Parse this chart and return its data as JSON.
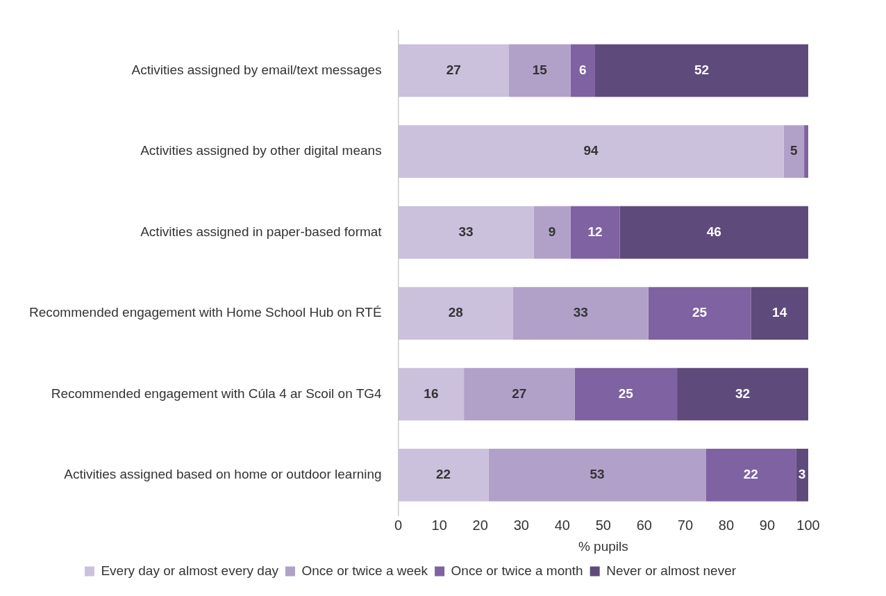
{
  "chart_data": {
    "type": "bar",
    "orientation": "horizontal",
    "stacked": true,
    "xlabel": "% pupils",
    "categories": [
      "Activities assigned by email/text messages",
      "Activities assigned by other digital means",
      "Activities assigned in paper-based format",
      "Recommended engagement with Home School Hub on RTÉ",
      "Recommended engagement with Cúla 4 ar Scoil on TG4",
      "Activities assigned based on home or outdoor learning"
    ],
    "series": [
      {
        "name": "Every day or almost every day",
        "color": "#cbc1dc",
        "values": [
          27,
          94,
          33,
          28,
          16,
          22
        ],
        "value_labels": [
          "27",
          "94",
          "33",
          "28",
          "16",
          "22"
        ]
      },
      {
        "name": "Once or twice a week",
        "color": "#b1a1c9",
        "values": [
          15,
          5,
          9,
          33,
          27,
          53
        ],
        "value_labels": [
          "15",
          "5",
          "9",
          "33",
          "27",
          "53"
        ]
      },
      {
        "name": "Once or twice a month",
        "color": "#7f62a1",
        "values": [
          6,
          1,
          12,
          25,
          25,
          22
        ],
        "value_labels": [
          "6",
          null,
          "12",
          "25",
          "25",
          "22"
        ]
      },
      {
        "name": "Never or almost never",
        "color": "#5f4a7c",
        "values": [
          52,
          0,
          46,
          14,
          32,
          3
        ],
        "value_labels": [
          "52",
          null,
          "46",
          "14",
          "32",
          "3"
        ]
      }
    ],
    "xlim": [
      0,
      100
    ],
    "xticks": [
      0,
      10,
      20,
      30,
      40,
      50,
      60,
      70,
      80,
      90,
      100
    ],
    "grid": false,
    "legend": "bottom"
  }
}
